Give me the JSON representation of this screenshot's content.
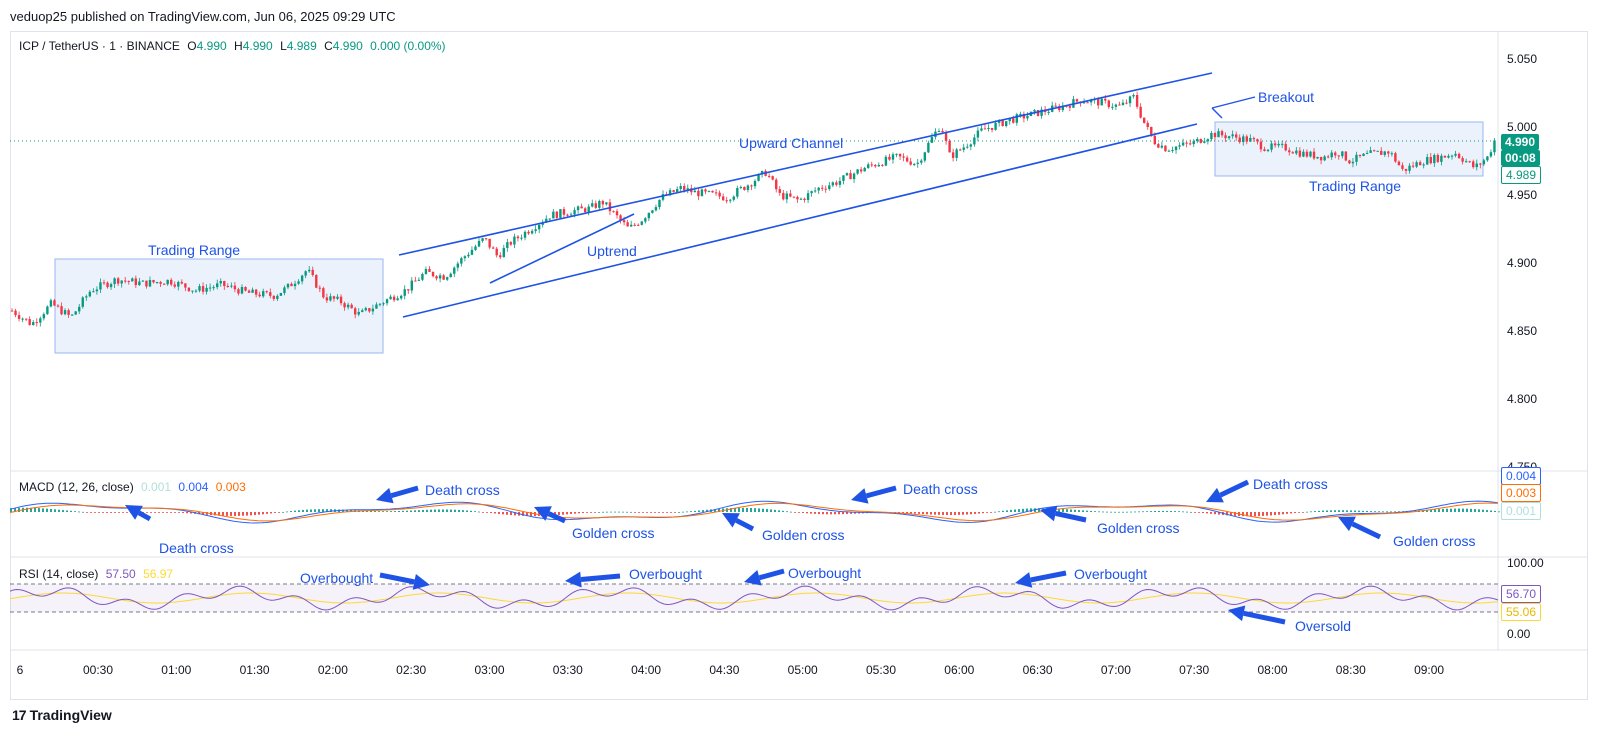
{
  "header": {
    "published": "veduop25 published on TradingView.com, Jun 06, 2025 09:29 UTC"
  },
  "legend": {
    "symbol": "ICP / TetherUS · 1 · BINANCE",
    "o_label": "O",
    "o": "4.990",
    "h_label": "H",
    "h": "4.990",
    "l_label": "L",
    "l": "4.989",
    "c_label": "C",
    "c": "4.990",
    "change": "0.000 (0.00%)"
  },
  "macd_legend": {
    "label": "MACD (12, 26, close)",
    "hist": "0.001",
    "macd": "0.004",
    "signal": "0.003"
  },
  "rsi_legend": {
    "label": "RSI (14, close)",
    "rsi": "57.50",
    "ma": "56.97"
  },
  "price_badges": {
    "last": "4.990",
    "countdown": "00:08",
    "low": "4.989"
  },
  "macd_badges": {
    "a": "0.004",
    "b": "0.003",
    "c": "0.001"
  },
  "rsi_badges": {
    "a": "56.70",
    "b": "55.06"
  },
  "footer": {
    "brand": "TradingView",
    "logo": "17"
  },
  "colors": {
    "up": "#089981",
    "down": "#f23645",
    "annotation": "#1e53e5",
    "macd": "#2962ff",
    "signal": "#ff6d00",
    "rsi": "#7e57c2",
    "rsi_ma": "#fdd835"
  },
  "annotations": [
    "Trading Range",
    "Upward Channel",
    "Uptrend",
    "Breakout",
    "Trading Range",
    "Death cross",
    "Death cross",
    "Death cross",
    "Death cross",
    "Golden cross",
    "Golden cross",
    "Golden cross",
    "Golden cross",
    "Overbought",
    "Overbought",
    "Overbought",
    "Overbought",
    "Oversold"
  ],
  "chart_data": {
    "type": "candlestick",
    "price_axis": {
      "ticks": [
        "5.050",
        "5.000",
        "4.950",
        "4.900",
        "4.850",
        "4.800",
        "4.750"
      ],
      "range": [
        4.74,
        5.08
      ]
    },
    "macd_axis": {
      "ticks": []
    },
    "rsi_axis": {
      "ticks": [
        "100.00",
        "0.00"
      ],
      "bands": [
        30,
        70
      ]
    },
    "time_axis": [
      "6",
      "00:30",
      "01:00",
      "01:30",
      "02:00",
      "02:30",
      "03:00",
      "03:30",
      "04:00",
      "04:30",
      "05:00",
      "05:30",
      "06:00",
      "06:30",
      "07:00",
      "07:30",
      "08:00",
      "08:30",
      "09:00"
    ],
    "close_path": [
      [
        0,
        4.865
      ],
      [
        15,
        4.855
      ],
      [
        30,
        4.87
      ],
      [
        45,
        4.86
      ],
      [
        60,
        4.88
      ],
      [
        80,
        4.888
      ],
      [
        100,
        4.885
      ],
      [
        120,
        4.887
      ],
      [
        140,
        4.88
      ],
      [
        160,
        4.884
      ],
      [
        180,
        4.878
      ],
      [
        200,
        4.876
      ],
      [
        210,
        4.882
      ],
      [
        225,
        4.895
      ],
      [
        238,
        4.875
      ],
      [
        250,
        4.872
      ],
      [
        265,
        4.862
      ],
      [
        280,
        4.87
      ],
      [
        300,
        4.88
      ],
      [
        315,
        4.893
      ],
      [
        330,
        4.89
      ],
      [
        345,
        4.905
      ],
      [
        360,
        4.918
      ],
      [
        370,
        4.905
      ],
      [
        380,
        4.915
      ],
      [
        395,
        4.925
      ],
      [
        410,
        4.935
      ],
      [
        425,
        4.938
      ],
      [
        440,
        4.94
      ],
      [
        450,
        4.945
      ],
      [
        460,
        4.935
      ],
      [
        470,
        4.925
      ],
      [
        480,
        4.932
      ],
      [
        495,
        4.948
      ],
      [
        510,
        4.955
      ],
      [
        520,
        4.952
      ],
      [
        535,
        4.95
      ],
      [
        545,
        4.948
      ],
      [
        560,
        4.957
      ],
      [
        575,
        4.967
      ],
      [
        585,
        4.95
      ],
      [
        600,
        4.946
      ],
      [
        615,
        4.955
      ],
      [
        630,
        4.96
      ],
      [
        650,
        4.97
      ],
      [
        665,
        4.975
      ],
      [
        675,
        4.978
      ],
      [
        690,
        4.973
      ],
      [
        700,
        4.99
      ],
      [
        708,
        5.002
      ],
      [
        715,
        4.978
      ],
      [
        725,
        4.985
      ],
      [
        740,
        4.998
      ],
      [
        760,
        5.005
      ],
      [
        780,
        5.01
      ],
      [
        800,
        5.015
      ],
      [
        815,
        5.02
      ],
      [
        830,
        5.018
      ],
      [
        845,
        5.015
      ],
      [
        855,
        5.022
      ],
      [
        862,
        5.005
      ],
      [
        870,
        4.99
      ],
      [
        880,
        4.984
      ],
      [
        900,
        4.988
      ],
      [
        915,
        4.995
      ],
      [
        930,
        4.993
      ],
      [
        945,
        4.99
      ],
      [
        955,
        4.985
      ],
      [
        970,
        4.985
      ],
      [
        985,
        4.98
      ],
      [
        1000,
        4.978
      ],
      [
        1010,
        4.982
      ],
      [
        1020,
        4.975
      ],
      [
        1035,
        4.98
      ],
      [
        1050,
        4.982
      ],
      [
        1060,
        4.968
      ],
      [
        1075,
        4.975
      ],
      [
        1090,
        4.978
      ],
      [
        1100,
        4.981
      ],
      [
        1115,
        4.97
      ],
      [
        1125,
        4.978
      ],
      [
        1130,
        4.99
      ]
    ],
    "macd": [],
    "rsi": []
  }
}
